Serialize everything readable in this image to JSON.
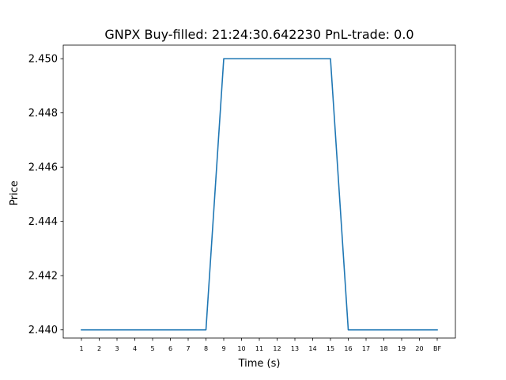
{
  "chart_data": {
    "type": "line",
    "title": "GNPX  Buy-filled:  21:24:30.642230  PnL-trade:  0.0",
    "xlabel": "Time (s)",
    "ylabel": "Price",
    "categories": [
      "1",
      "2",
      "3",
      "4",
      "5",
      "6",
      "7",
      "8",
      "9",
      "10",
      "11",
      "12",
      "13",
      "14",
      "15",
      "16",
      "17",
      "18",
      "19",
      "20",
      "BF"
    ],
    "series": [
      {
        "values": [
          2.44,
          2.44,
          2.44,
          2.44,
          2.44,
          2.44,
          2.44,
          2.44,
          2.45,
          2.45,
          2.45,
          2.45,
          2.45,
          2.45,
          2.45,
          2.44,
          2.44,
          2.44,
          2.44,
          2.44,
          2.44
        ]
      }
    ],
    "ylim": [
      2.4397,
      2.4505
    ],
    "yticks": [
      2.44,
      2.442,
      2.444,
      2.446,
      2.448,
      2.45
    ],
    "ytick_labels": [
      "2.440",
      "2.442",
      "2.444",
      "2.446",
      "2.448",
      "2.450"
    ],
    "line_color": "#1f77b4",
    "grid": false,
    "legend": "none"
  }
}
